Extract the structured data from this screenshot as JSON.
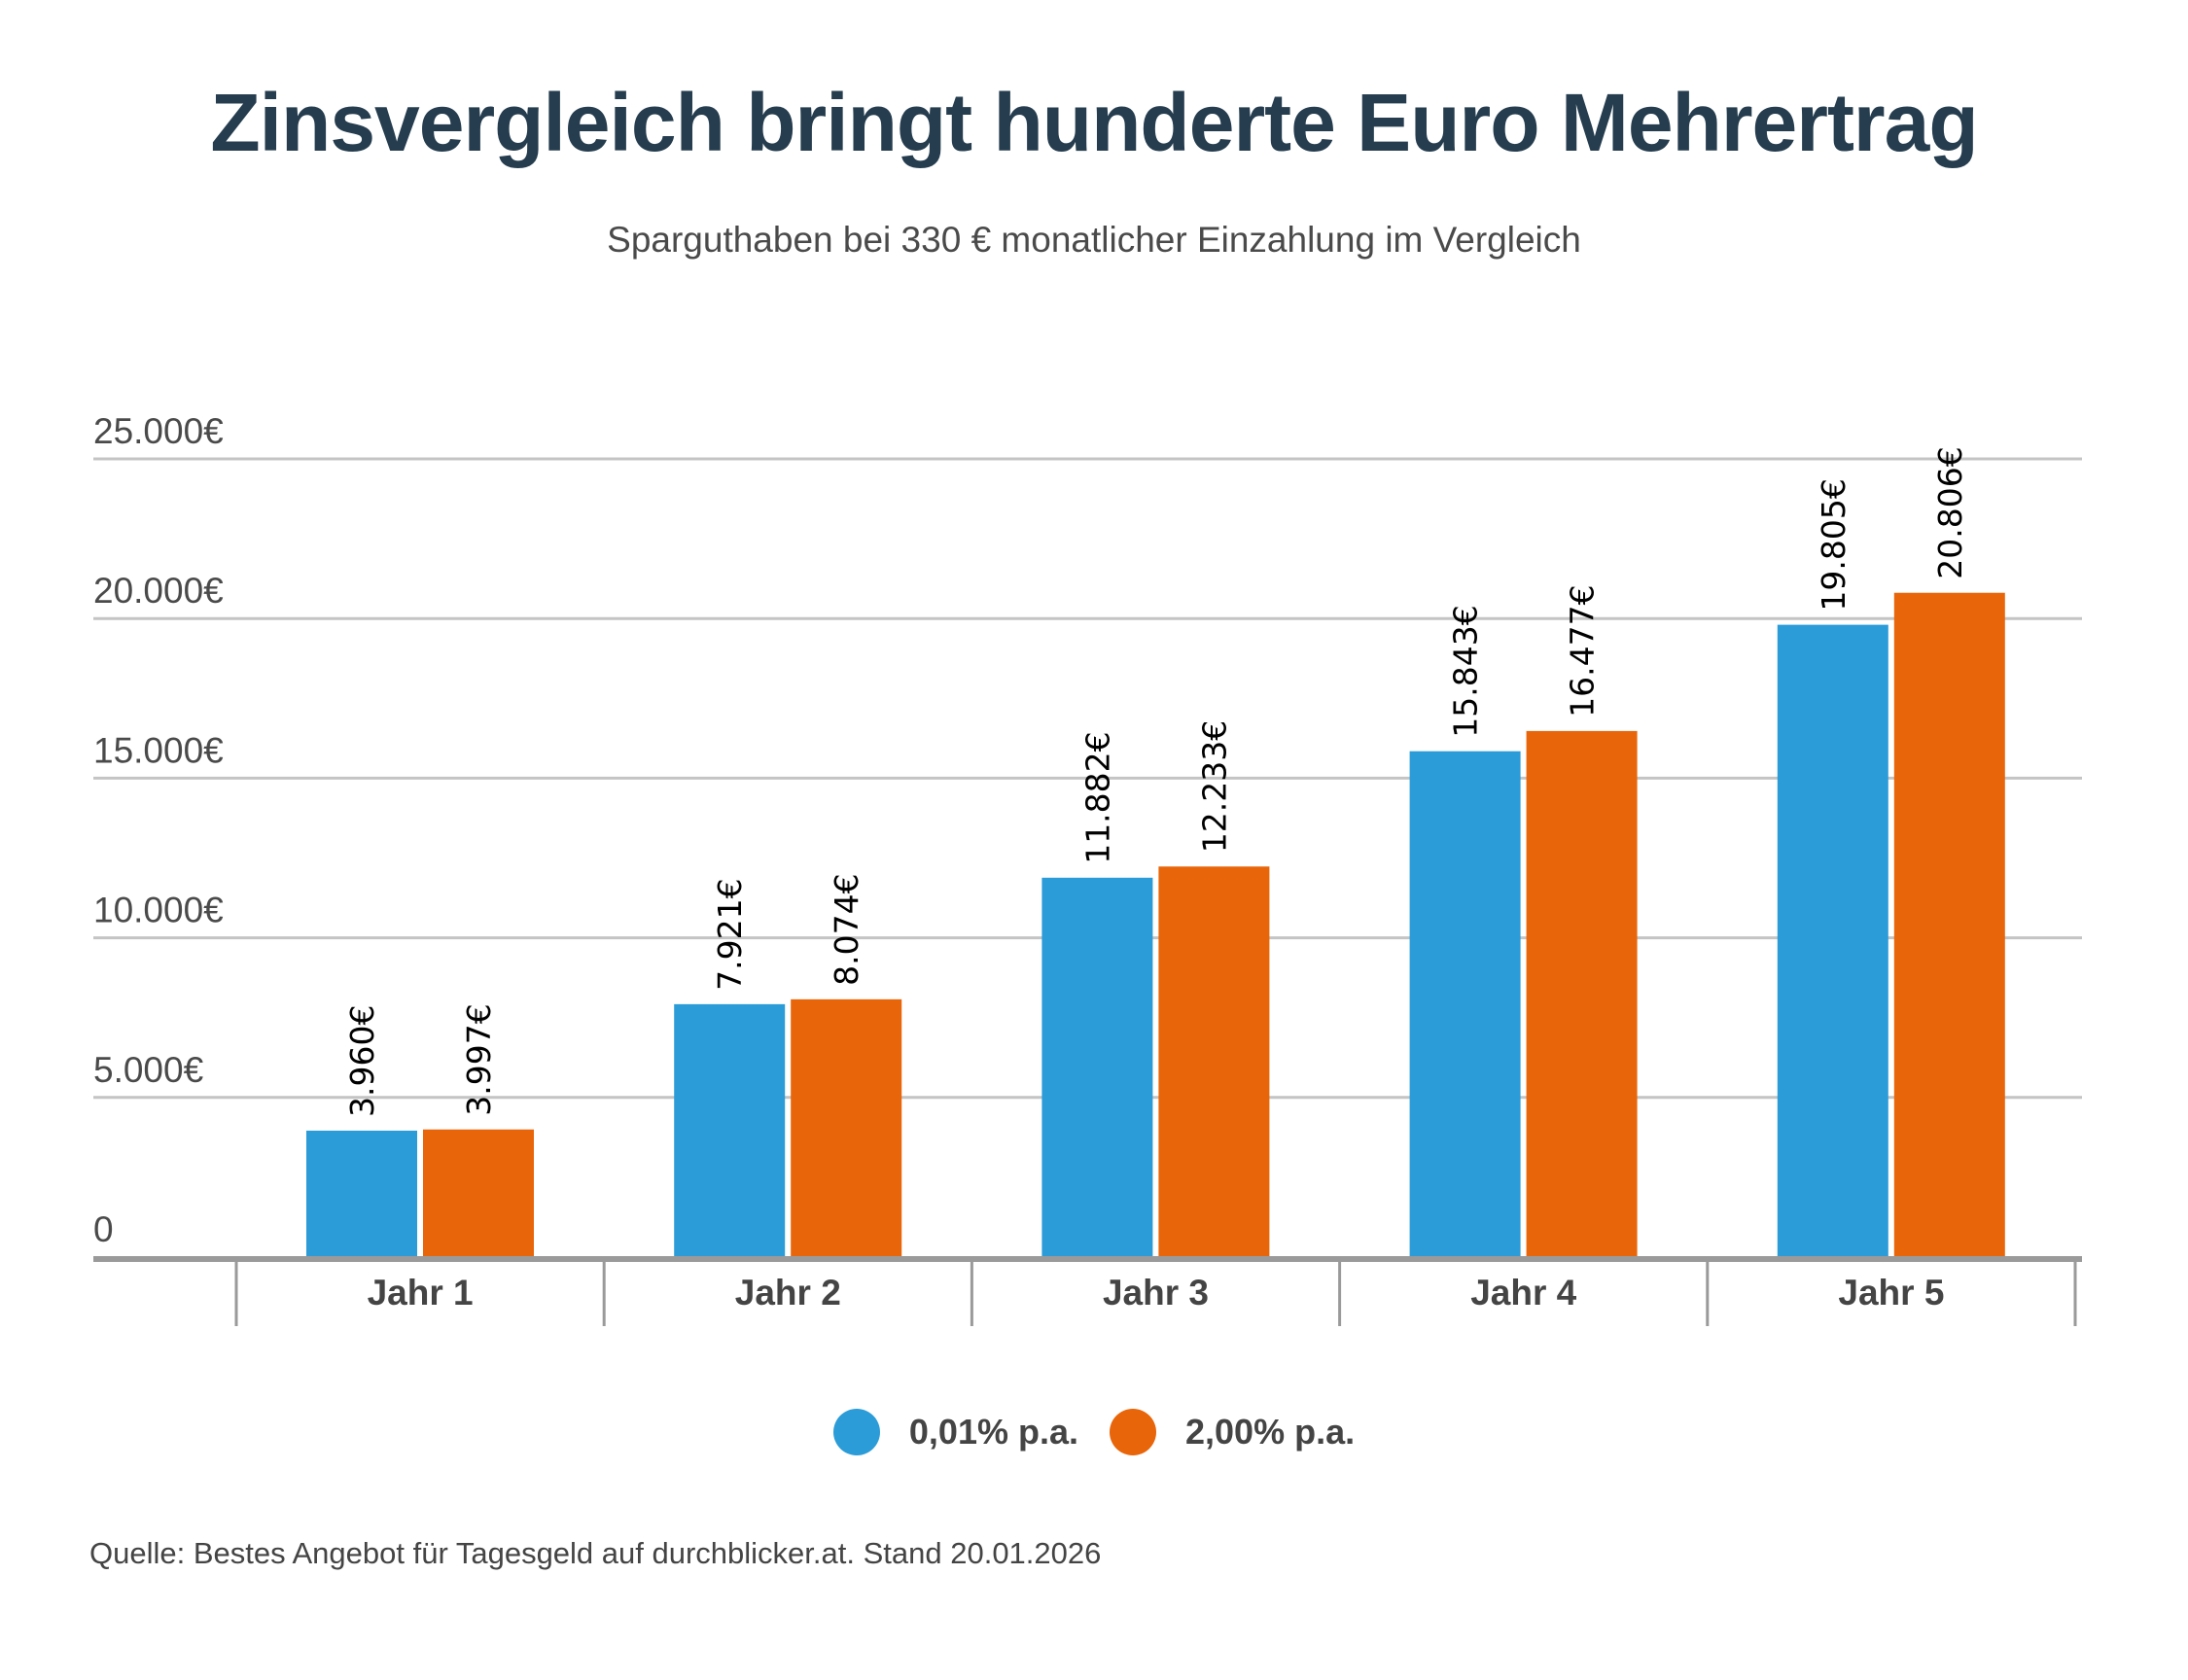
{
  "header": {
    "title": "Zinsvergleich bringt hunderte Euro Mehrertrag",
    "subtitle": "Sparguthaben bei 330 € monatlicher Einzahlung im Vergleich"
  },
  "footer": {
    "source": "Quelle: Bestes Angebot für Tagesgeld auf durchblicker.at. Stand 20.01.2026"
  },
  "colors": {
    "series_0": "#2b9cd8",
    "series_1": "#e8650a",
    "title": "#253d4e",
    "text": "#4a4a4a",
    "gridline": "#c4c4c4",
    "axis": "#9a9a9a"
  },
  "chart_data": {
    "type": "bar",
    "title": "Zinsvergleich bringt hunderte Euro Mehrertrag",
    "subtitle": "Sparguthaben bei 330 € monatlicher Einzahlung im Vergleich",
    "xlabel": "",
    "ylabel": "",
    "categories": [
      "Jahr 1",
      "Jahr 2",
      "Jahr 3",
      "Jahr 4",
      "Jahr 5"
    ],
    "series": [
      {
        "name": "0,01% p.a.",
        "values": [
          3960,
          7921,
          11882,
          15843,
          19805
        ],
        "labels": [
          "3.960€",
          "7.921€",
          "11.882€",
          "15.843€",
          "19.805€"
        ]
      },
      {
        "name": "2,00% p.a.",
        "values": [
          3997,
          8074,
          12233,
          16477,
          20806
        ],
        "labels": [
          "3.997€",
          "8.074€",
          "12.233€",
          "16.477€",
          "20.806€"
        ]
      }
    ],
    "ylim": [
      0,
      25000
    ],
    "yticks": [
      0,
      5000,
      10000,
      15000,
      20000,
      25000
    ],
    "ytick_labels": [
      "0",
      "5.000€",
      "10.000€",
      "15.000€",
      "20.000€",
      "25.000€"
    ],
    "grid": true,
    "legend_position": "bottom-center",
    "data_labels": "rotated-vertical-above-bars"
  }
}
